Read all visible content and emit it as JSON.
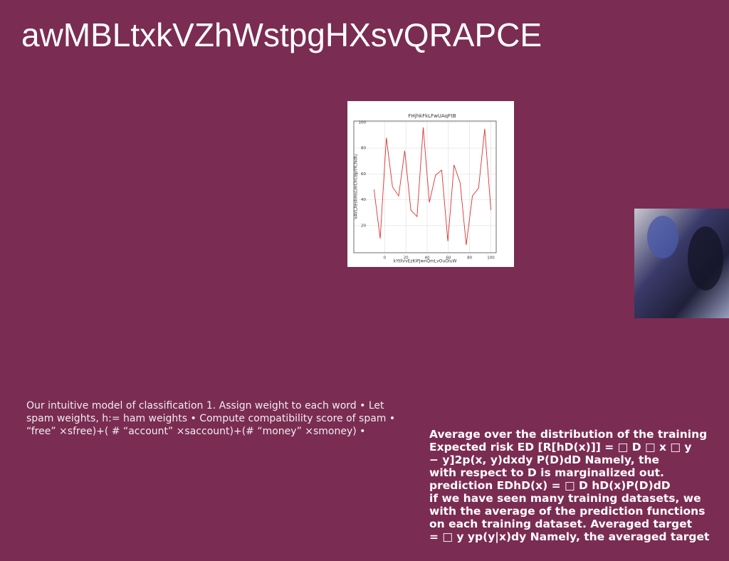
{
  "title": "awMBLtxkVZhWstpgHXsvQRAPCE",
  "chart_data": {
    "type": "line",
    "title": "FHjhkFkLFwUAqFtB",
    "x_label": "kYtlIvvEzKiPJwnQmLvOuOluW",
    "y_label": "vAVLXeshmsLmChCBpYfCNdfu",
    "x": [
      -10,
      -4.2,
      1.6,
      7.4,
      13.2,
      18.9,
      24.7,
      30.5,
      36.3,
      42.1,
      47.9,
      53.7,
      59.5,
      65.3,
      71.1,
      76.8,
      82.6,
      88.4,
      94.2,
      100
    ],
    "series": [
      {
        "name": "line",
        "color": "#e03030",
        "values": [
          48,
          10,
          88,
          50,
          43,
          78,
          32,
          27,
          96,
          38,
          59,
          63,
          8,
          67,
          53,
          5,
          43,
          49,
          95,
          32
        ]
      }
    ],
    "xlim": [
      -29,
      105
    ],
    "ylim": [
      -1,
      101
    ],
    "xticks": [
      0,
      20,
      40,
      60,
      80,
      100
    ],
    "yticks": [
      20,
      40,
      60,
      80,
      100
    ],
    "grid": true
  },
  "left_text": {
    "lines": [
      "Our intuitive model of classification 1. Assign weight to each word • Let",
      "spam weights, h:= ham weights • Compute compatibility score of spam •",
      "“free” ×sfree)+( # “account” ×saccount)+(# “money” ×smoney) •"
    ]
  },
  "right_text": {
    "lines": [
      "Average over the distribution of the training",
      "Expected risk ED [R[hD(x)]] = □ D □ x □ y",
      "− y]2p(x, y)dxdy P(D)dD Namely, the",
      "with respect to D is marginalized out.",
      "prediction EDhD(x) = □ D hD(x)P(D)dD",
      "if we have seen many training datasets, we",
      "with the average of the prediction functions",
      "on each training dataset. Averaged target",
      "= □ y yp(y|x)dy Namely, the averaged target"
    ]
  }
}
